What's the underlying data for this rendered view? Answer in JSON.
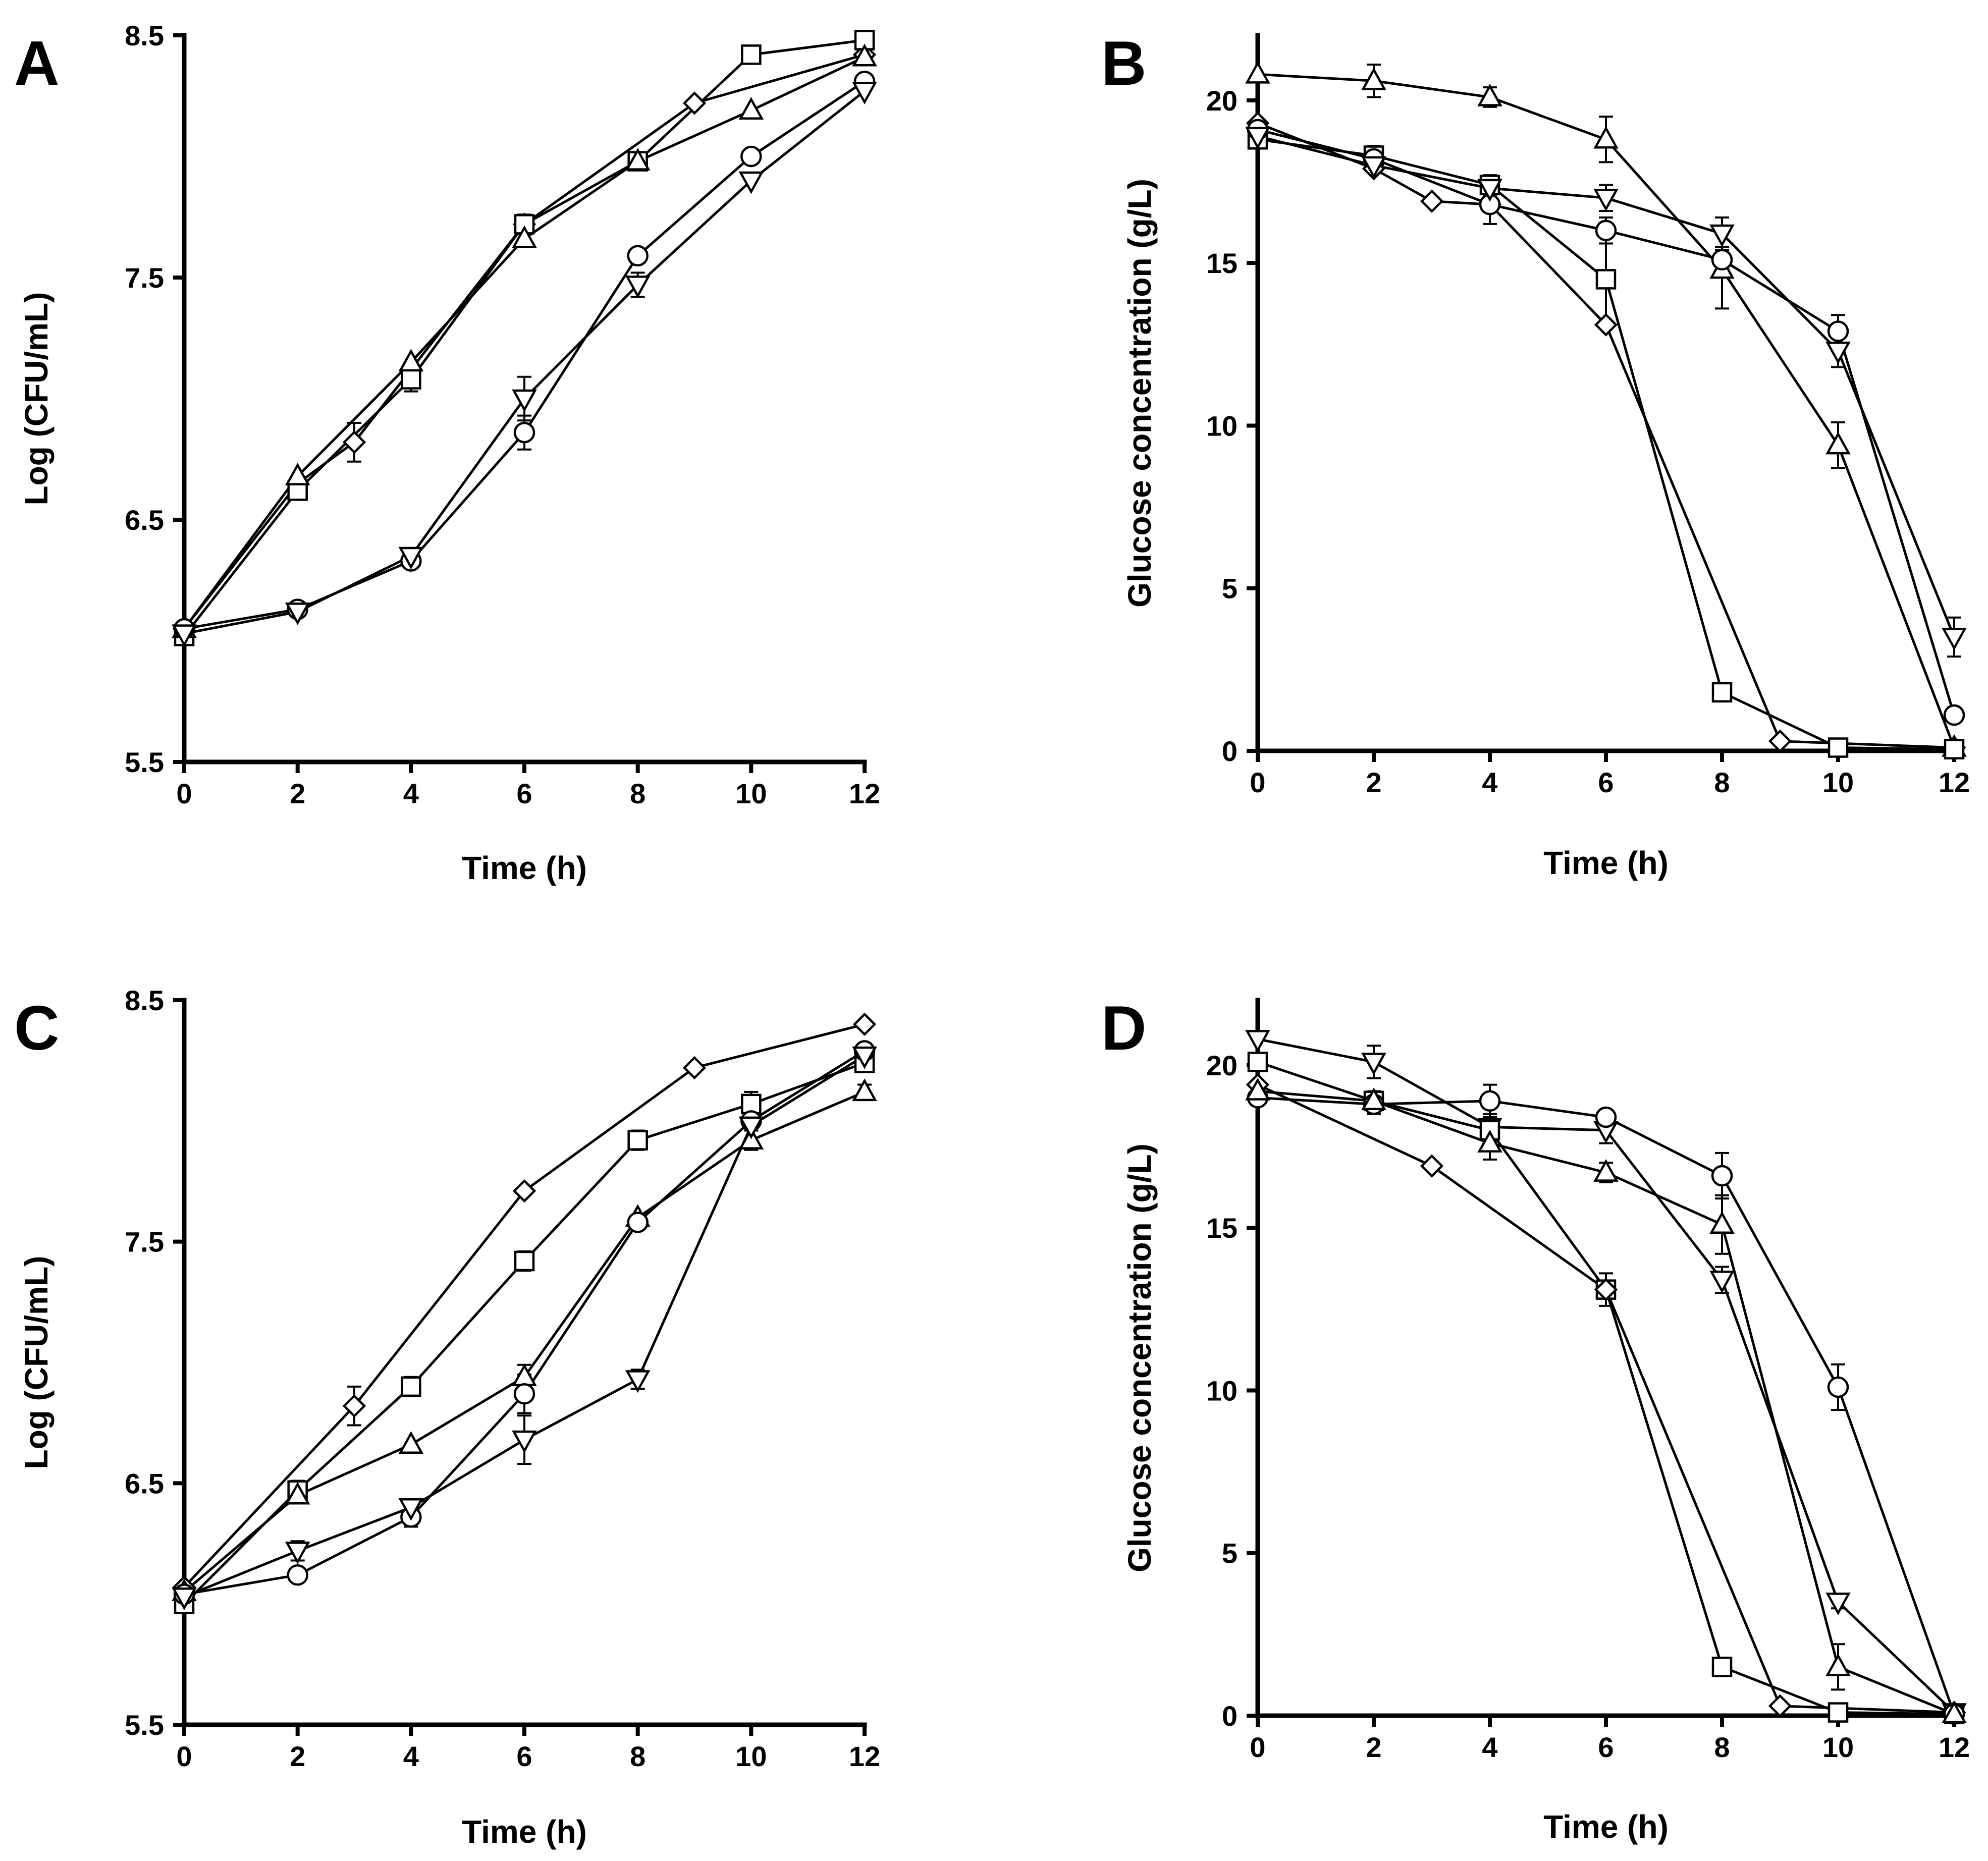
{
  "figure": {
    "panels": [
      "A",
      "B",
      "C",
      "D"
    ]
  },
  "chart_data": [
    {
      "panel": "A",
      "type": "line",
      "xlabel": "Time (h)",
      "ylabel": "Log (CFU/mL)",
      "xlim": [
        0,
        12
      ],
      "ylim": [
        5.5,
        8.5
      ],
      "xticks": [
        0,
        2,
        4,
        6,
        8,
        10,
        12
      ],
      "yticks": [
        5.5,
        6.5,
        7.5,
        8.5
      ],
      "ytick_labels": [
        "5.5",
        "6.5",
        "7.5",
        "8.5"
      ],
      "series": [
        {
          "name": "diamond",
          "marker": "diamond",
          "x": [
            0,
            2,
            3,
            4,
            6,
            9,
            12
          ],
          "values": [
            6.05,
            6.65,
            6.82,
            7.12,
            7.72,
            8.22,
            8.42
          ],
          "err": [
            0,
            0,
            0.08,
            0,
            0,
            0,
            0
          ]
        },
        {
          "name": "square",
          "marker": "square",
          "x": [
            0,
            2,
            4,
            6,
            8,
            10,
            12
          ],
          "values": [
            6.02,
            6.62,
            7.08,
            7.72,
            7.98,
            8.42,
            8.48
          ],
          "err": [
            0,
            0,
            0.05,
            0.04,
            0.03,
            0.03,
            0
          ]
        },
        {
          "name": "triangle-up",
          "marker": "triangle-up",
          "x": [
            0,
            2,
            4,
            6,
            8,
            10,
            12
          ],
          "values": [
            6.05,
            6.68,
            7.15,
            7.66,
            7.98,
            8.19,
            8.41
          ],
          "err": [
            0,
            0,
            0,
            0,
            0,
            0,
            0
          ]
        },
        {
          "name": "circle",
          "marker": "circle",
          "x": [
            0,
            2,
            4,
            6,
            8,
            10,
            12
          ],
          "values": [
            6.05,
            6.13,
            6.33,
            6.86,
            7.59,
            8.0,
            8.31
          ],
          "err": [
            0,
            0,
            0.03,
            0.07,
            0,
            0,
            0
          ]
        },
        {
          "name": "triangle-down",
          "marker": "triangle-down",
          "x": [
            0,
            2,
            4,
            6,
            8,
            10,
            12
          ],
          "values": [
            6.03,
            6.12,
            6.35,
            7.0,
            7.47,
            7.9,
            8.27
          ],
          "err": [
            0,
            0,
            0,
            0.09,
            0.05,
            0,
            0
          ]
        }
      ]
    },
    {
      "panel": "B",
      "type": "line",
      "xlabel": "Time (h)",
      "ylabel": "Glucose concentration (g/L)",
      "xlim": [
        0,
        12
      ],
      "ylim": [
        0,
        22
      ],
      "xticks": [
        0,
        2,
        4,
        6,
        8,
        10,
        12
      ],
      "yticks": [
        0,
        5,
        10,
        15,
        20
      ],
      "ytick_labels": [
        "0",
        "5",
        "10",
        "15",
        "20"
      ],
      "series": [
        {
          "name": "triangle-up",
          "marker": "triangle-up",
          "x": [
            0,
            2,
            4,
            6,
            8,
            10,
            12
          ],
          "values": [
            20.8,
            20.6,
            20.1,
            18.8,
            14.8,
            9.4,
            0.1
          ],
          "err": [
            0,
            0.5,
            0.3,
            0.7,
            1.2,
            0.7,
            0
          ]
        },
        {
          "name": "diamond",
          "marker": "diamond",
          "x": [
            0,
            2,
            3,
            4,
            6,
            9,
            12
          ],
          "values": [
            19.3,
            17.9,
            16.9,
            16.8,
            13.1,
            0.3,
            0.1
          ],
          "err": [
            0,
            0,
            0,
            0,
            0,
            0,
            0
          ]
        },
        {
          "name": "square",
          "marker": "square",
          "x": [
            0,
            2,
            4,
            6,
            8,
            10,
            12
          ],
          "values": [
            18.8,
            18.3,
            17.4,
            14.5,
            1.8,
            0.1,
            0.05
          ],
          "err": [
            0,
            0.3,
            0.3,
            1.3,
            0.1,
            0,
            0
          ]
        },
        {
          "name": "circle",
          "marker": "circle",
          "x": [
            0,
            2,
            4,
            6,
            8,
            10,
            12
          ],
          "values": [
            19.1,
            18.2,
            16.8,
            16.0,
            15.1,
            12.9,
            1.1
          ],
          "err": [
            0,
            0.3,
            0.6,
            0.4,
            0.4,
            0.5,
            0
          ]
        },
        {
          "name": "triangle-down",
          "marker": "triangle-down",
          "x": [
            0,
            2,
            4,
            6,
            8,
            10,
            12
          ],
          "values": [
            18.9,
            18.0,
            17.3,
            17.0,
            15.9,
            12.3,
            3.5
          ],
          "err": [
            0,
            0,
            0.3,
            0.4,
            0.5,
            0.5,
            0.6
          ]
        }
      ]
    },
    {
      "panel": "C",
      "type": "line",
      "xlabel": "Time (h)",
      "ylabel": "Log (CFU/mL)",
      "xlim": [
        0,
        12
      ],
      "ylim": [
        5.5,
        8.5
      ],
      "xticks": [
        0,
        2,
        4,
        6,
        8,
        10,
        12
      ],
      "yticks": [
        5.5,
        6.5,
        7.5,
        8.5
      ],
      "ytick_labels": [
        "5.5",
        "6.5",
        "7.5",
        "8.5"
      ],
      "series": [
        {
          "name": "diamond",
          "marker": "diamond",
          "x": [
            0,
            3,
            6,
            9,
            12
          ],
          "values": [
            6.07,
            6.82,
            7.71,
            8.22,
            8.4
          ],
          "err": [
            0,
            0.08,
            0,
            0,
            0
          ]
        },
        {
          "name": "square",
          "marker": "square",
          "x": [
            0,
            2,
            4,
            6,
            8,
            10,
            12
          ],
          "values": [
            6.0,
            6.47,
            6.9,
            7.42,
            7.92,
            8.07,
            8.24
          ],
          "err": [
            0,
            0.04,
            0.04,
            0.04,
            0.04,
            0.05,
            0
          ]
        },
        {
          "name": "triangle-up",
          "marker": "triangle-up",
          "x": [
            0,
            2,
            4,
            6,
            8,
            10,
            12
          ],
          "values": [
            6.05,
            6.45,
            6.66,
            6.94,
            7.6,
            7.92,
            8.12
          ],
          "err": [
            0,
            0,
            0,
            0.05,
            0,
            0.04,
            0.03
          ]
        },
        {
          "name": "circle",
          "marker": "circle",
          "x": [
            0,
            2,
            4,
            6,
            8,
            10,
            12
          ],
          "values": [
            6.04,
            6.12,
            6.36,
            6.87,
            7.58,
            8.0,
            8.29
          ],
          "err": [
            0,
            0,
            0.04,
            0.08,
            0,
            0,
            0
          ]
        },
        {
          "name": "triangle-down",
          "marker": "triangle-down",
          "x": [
            0,
            2,
            4,
            6,
            8,
            10,
            12
          ],
          "values": [
            6.03,
            6.22,
            6.4,
            6.68,
            6.93,
            7.98,
            8.27
          ],
          "err": [
            0,
            0.04,
            0,
            0.1,
            0.04,
            0,
            0
          ]
        }
      ]
    },
    {
      "panel": "D",
      "type": "line",
      "xlabel": "Time (h)",
      "ylabel": "Glucose concentration (g/L)",
      "xlim": [
        0,
        12
      ],
      "ylim": [
        0,
        22
      ],
      "xticks": [
        0,
        2,
        4,
        6,
        8,
        10,
        12
      ],
      "yticks": [
        0,
        5,
        10,
        15,
        20
      ],
      "ytick_labels": [
        "0",
        "5",
        "10",
        "15",
        "20"
      ],
      "series": [
        {
          "name": "triangle-down",
          "marker": "triangle-down",
          "x": [
            0,
            2,
            4,
            6,
            8,
            10,
            12
          ],
          "values": [
            20.8,
            20.1,
            18.1,
            18.0,
            13.4,
            3.5,
            0.1
          ],
          "err": [
            0,
            0.5,
            0.4,
            0.4,
            0.4,
            0.2,
            0
          ]
        },
        {
          "name": "square",
          "marker": "square",
          "x": [
            0,
            2,
            4,
            6,
            8,
            10,
            12
          ],
          "values": [
            20.1,
            18.9,
            18.0,
            13.1,
            1.5,
            0.1,
            0.05
          ],
          "err": [
            0,
            0.3,
            0.4,
            0.5,
            0.1,
            0,
            0
          ]
        },
        {
          "name": "diamond",
          "marker": "diamond",
          "x": [
            0,
            3,
            6,
            9,
            12
          ],
          "values": [
            19.4,
            16.9,
            13.1,
            0.3,
            0.1
          ],
          "err": [
            0,
            0,
            0,
            0,
            0
          ]
        },
        {
          "name": "circle",
          "marker": "circle",
          "x": [
            0,
            2,
            4,
            6,
            8,
            10,
            12
          ],
          "values": [
            19.0,
            18.8,
            18.9,
            18.4,
            16.6,
            10.1,
            0.05
          ],
          "err": [
            0,
            0.3,
            0.5,
            0.2,
            0.7,
            0.7,
            0
          ]
        },
        {
          "name": "triangle-up",
          "marker": "triangle-up",
          "x": [
            0,
            2,
            4,
            6,
            8,
            10,
            12
          ],
          "values": [
            19.2,
            18.9,
            17.6,
            16.7,
            15.1,
            1.5,
            0.05
          ],
          "err": [
            0,
            0.3,
            0.5,
            0.3,
            0.9,
            0.7,
            0
          ]
        }
      ]
    }
  ]
}
